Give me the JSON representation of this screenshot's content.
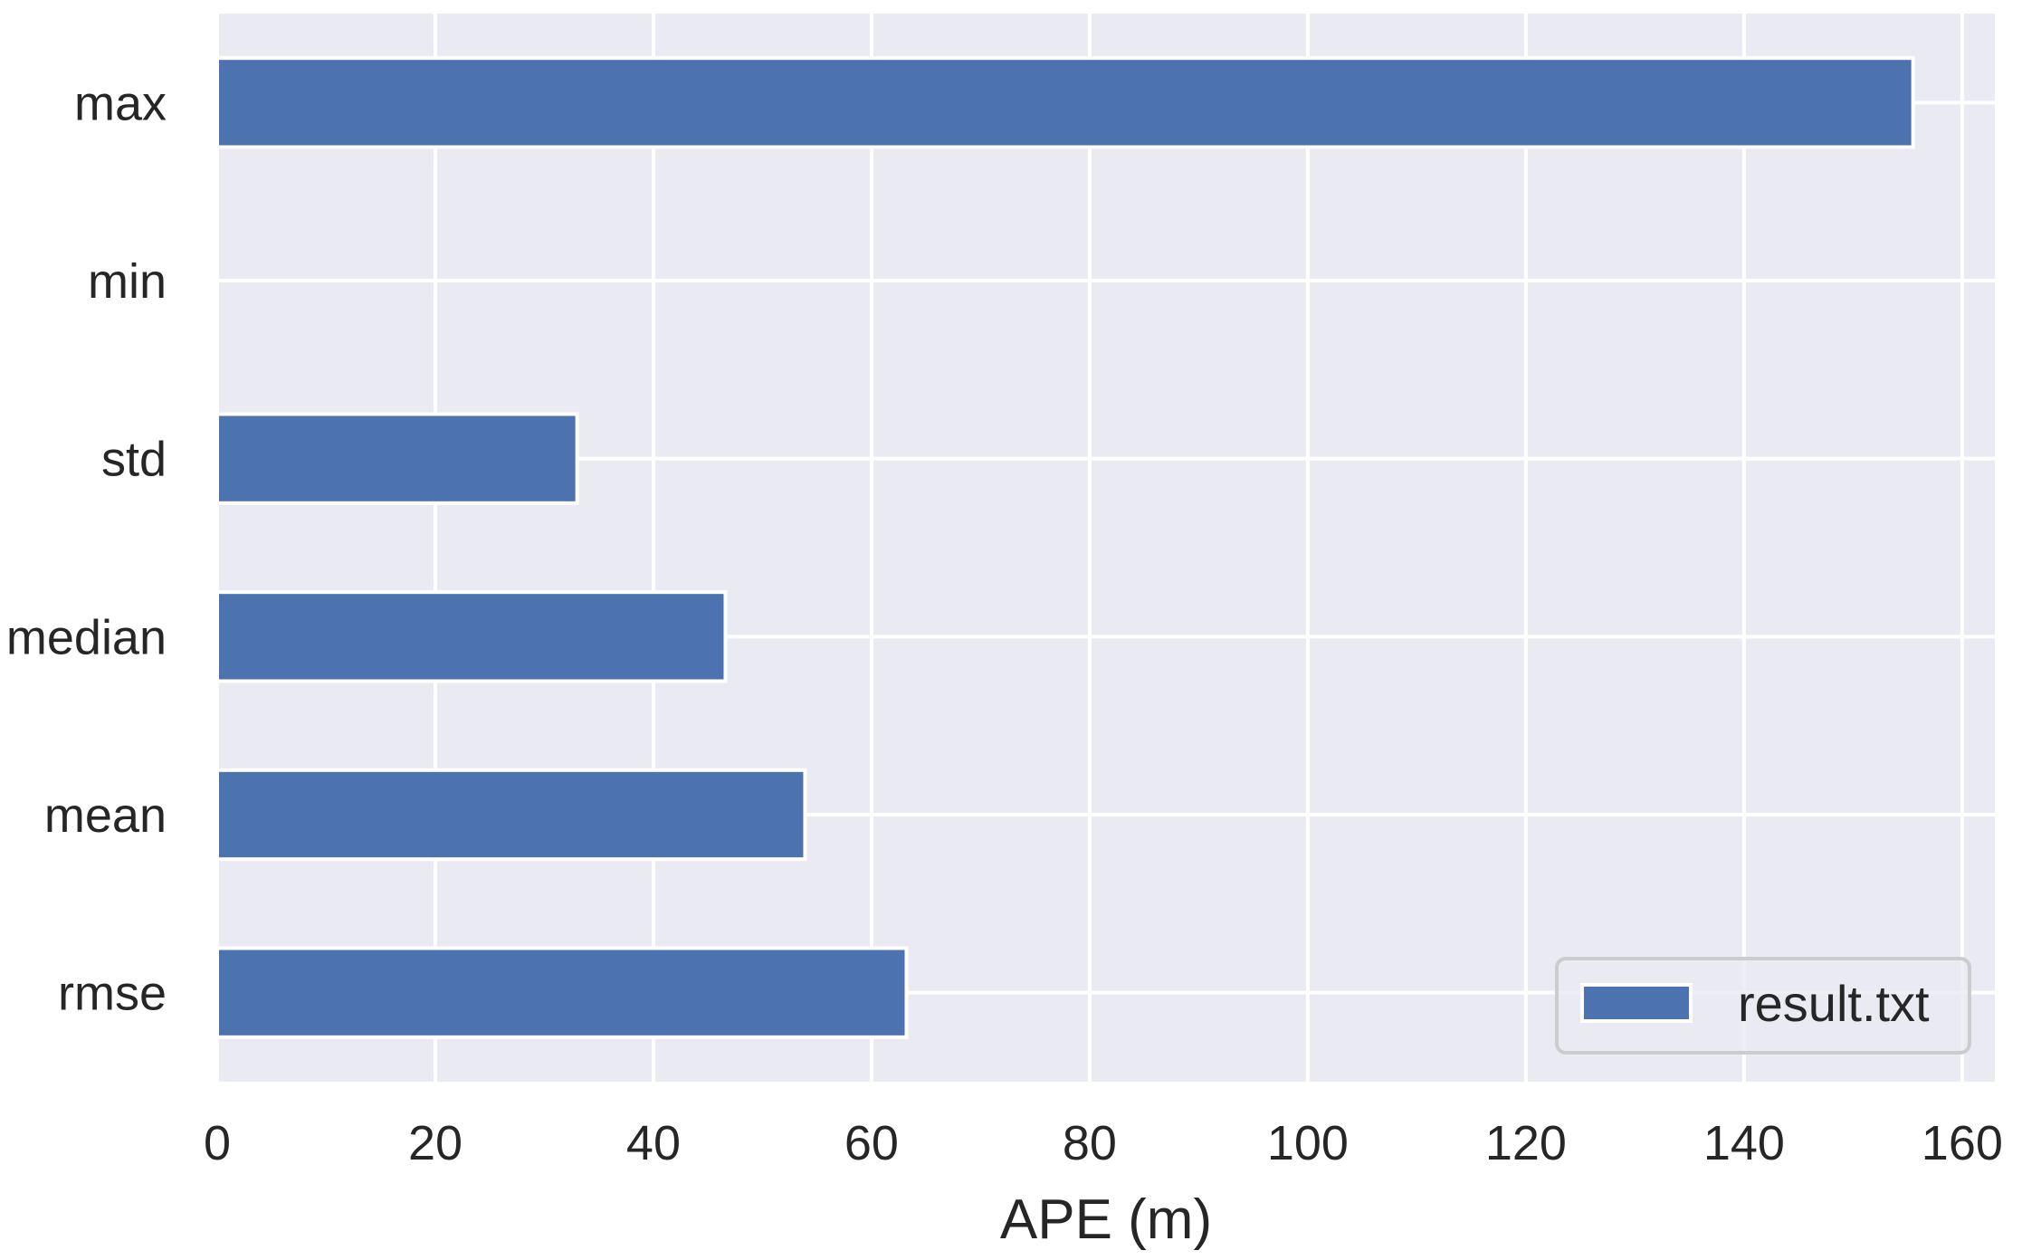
{
  "chart_data": {
    "type": "bar",
    "orientation": "horizontal",
    "categories": [
      "max",
      "min",
      "std",
      "median",
      "mean",
      "rmse"
    ],
    "series": [
      {
        "name": "result.txt",
        "values": [
          155.5,
          0,
          33.0,
          46.6,
          53.9,
          63.2
        ]
      }
    ],
    "xlabel": "APE (m)",
    "ylabel": "",
    "xlim": [
      0,
      163
    ],
    "xticks": [
      0,
      20,
      40,
      60,
      80,
      100,
      120,
      140,
      160
    ],
    "xtick_labels": [
      "0",
      "20",
      "40",
      "60",
      "80",
      "100",
      "120",
      "140",
      "160"
    ],
    "grid": true,
    "legend_position": "bottom-right",
    "colors": {
      "bar": "#4c72b0",
      "plot_background": "#eaeaf2",
      "grid": "#ffffff",
      "text": "#262626",
      "page": "#ffffff"
    }
  }
}
